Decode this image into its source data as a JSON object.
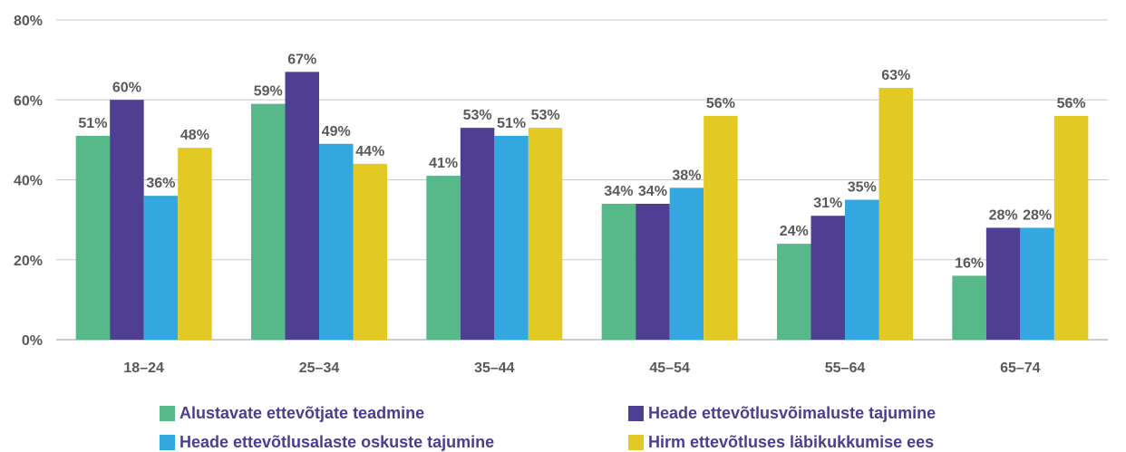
{
  "chart_data": {
    "type": "bar",
    "categories": [
      "18–24",
      "25–34",
      "35–44",
      "45–54",
      "55–64",
      "65–74"
    ],
    "series": [
      {
        "name": "Alustavate ettevõtjate teadmine",
        "color": "#57b98a",
        "values": [
          51,
          59,
          41,
          34,
          24,
          16
        ],
        "labels": [
          "51%",
          "59%",
          "41%",
          "34%",
          "24%",
          "16%"
        ]
      },
      {
        "name": "Heade ettevõtlusvõimaluste tajumine",
        "color": "#4f3f93",
        "values": [
          60,
          67,
          53,
          34,
          31,
          28
        ],
        "labels": [
          "60%",
          "67%",
          "53%",
          "34%",
          "31%",
          "28%"
        ]
      },
      {
        "name": "Heade ettevõtlusalaste oskuste tajumine",
        "color": "#33a8e0",
        "values": [
          36,
          49,
          51,
          38,
          35,
          28
        ],
        "labels": [
          "36%",
          "49%",
          "51%",
          "38%",
          "35%",
          "28%"
        ]
      },
      {
        "name": "Hirm ettevõtluses läbikukkumise ees",
        "color": "#e2c924",
        "values": [
          48,
          44,
          53,
          56,
          63,
          56
        ],
        "labels": [
          "48%",
          "44%",
          "53%",
          "56%",
          "63%",
          "56%"
        ]
      }
    ],
    "yticks": [
      "0%",
      "20%",
      "40%",
      "60%",
      "80%"
    ],
    "ylim": [
      0,
      80
    ],
    "grid": true,
    "legend_position": "bottom"
  },
  "legend": {
    "item1": "Alustavate ettevõtjate teadmine",
    "item2": "Heade ettevõtlusvõimaluste tajumine",
    "item3": "Heade ettevõtlusalaste oskuste tajumine",
    "item4": "Hirm ettevõtluses läbikukkumise ees"
  }
}
